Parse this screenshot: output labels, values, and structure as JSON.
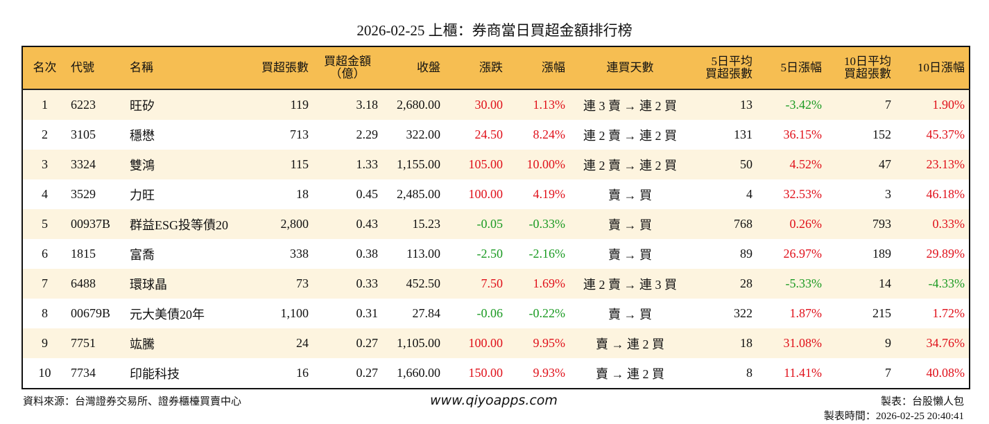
{
  "title": "2026-02-25 上櫃：券商當日買超金額排行榜",
  "headers": [
    "名次",
    "代號",
    "名稱",
    "買超張數",
    "買超金額\n（億）",
    "收盤",
    "漲跌",
    "漲幅",
    "連買天數",
    "5日平均\n買超張數",
    "5日漲幅",
    "10日平均\n買超張數",
    "10日漲幅"
  ],
  "colors": {
    "header_bg": "#f6be52",
    "row_alt_bg": "#fdf4df",
    "up": "#e0101a",
    "down": "#1a9a22"
  },
  "rows": [
    [
      "1",
      "6223",
      "旺矽",
      "119",
      "3.18",
      "2,680.00",
      "30.00",
      "1.13%",
      "連 3 賣 → 連 2 買",
      "13",
      "-3.42%",
      "7",
      "1.90%"
    ],
    [
      "2",
      "3105",
      "穩懋",
      "713",
      "2.29",
      "322.00",
      "24.50",
      "8.24%",
      "連 2 賣 → 連 2 買",
      "131",
      "36.15%",
      "152",
      "45.37%"
    ],
    [
      "3",
      "3324",
      "雙鴻",
      "115",
      "1.33",
      "1,155.00",
      "105.00",
      "10.00%",
      "連 2 賣 → 連 2 買",
      "50",
      "4.52%",
      "47",
      "23.13%"
    ],
    [
      "4",
      "3529",
      "力旺",
      "18",
      "0.45",
      "2,485.00",
      "100.00",
      "4.19%",
      "賣 → 買",
      "4",
      "32.53%",
      "3",
      "46.18%"
    ],
    [
      "5",
      "00937B",
      "群益ESG投等債20",
      "2,800",
      "0.43",
      "15.23",
      "-0.05",
      "-0.33%",
      "賣 → 買",
      "768",
      "0.26%",
      "793",
      "0.33%"
    ],
    [
      "6",
      "1815",
      "富喬",
      "338",
      "0.38",
      "113.00",
      "-2.50",
      "-2.16%",
      "賣 → 買",
      "89",
      "26.97%",
      "189",
      "29.89%"
    ],
    [
      "7",
      "6488",
      "環球晶",
      "73",
      "0.33",
      "452.50",
      "7.50",
      "1.69%",
      "連 2 賣 → 連 3 買",
      "28",
      "-5.33%",
      "14",
      "-4.33%"
    ],
    [
      "8",
      "00679B",
      "元大美債20年",
      "1,100",
      "0.31",
      "27.84",
      "-0.06",
      "-0.22%",
      "賣 → 買",
      "322",
      "1.87%",
      "215",
      "1.72%"
    ],
    [
      "9",
      "7751",
      "竑騰",
      "24",
      "0.27",
      "1,105.00",
      "100.00",
      "9.95%",
      "賣 → 連 2 買",
      "18",
      "31.08%",
      "9",
      "34.76%"
    ],
    [
      "10",
      "7734",
      "印能科技",
      "16",
      "0.27",
      "1,660.00",
      "150.00",
      "9.93%",
      "賣 → 連 2 買",
      "8",
      "11.41%",
      "7",
      "40.08%"
    ]
  ],
  "footer": {
    "source": "資料來源：台灣證券交易所、證券櫃檯買賣中心",
    "website": "www.qiyoapps.com",
    "author": "製表：台股懶人包",
    "made_time": "製表時間：2026-02-25 20:40:41"
  }
}
